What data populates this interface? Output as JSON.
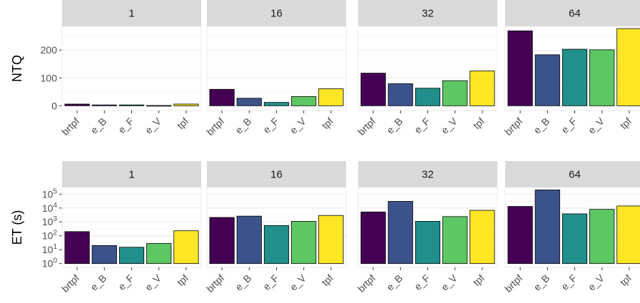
{
  "chart_data": [
    {
      "type": "bar",
      "ylabel": "NTQ",
      "yscale": "linear",
      "ylim": [
        0,
        285
      ],
      "yticks": [
        {
          "value": 0,
          "label": "0"
        },
        {
          "value": 100,
          "label": "100"
        },
        {
          "value": 200,
          "label": "200"
        }
      ],
      "categories": [
        "brtpf",
        "e_B",
        "e_F",
        "e_V",
        "tpf"
      ],
      "panels": [
        {
          "label": "1",
          "values": [
            6,
            3,
            3,
            1,
            6
          ]
        },
        {
          "label": "16",
          "values": [
            59,
            27,
            12,
            33,
            61
          ]
        },
        {
          "label": "32",
          "values": [
            117,
            79,
            63,
            90,
            125
          ]
        },
        {
          "label": "64",
          "values": [
            269,
            183,
            203,
            201,
            277
          ]
        }
      ]
    },
    {
      "type": "bar",
      "ylabel": "ET (s)",
      "yscale": "log10",
      "ylim": [
        1,
        300000
      ],
      "yticks": [
        {
          "value": 1,
          "base": "10",
          "exp": "0"
        },
        {
          "value": 10,
          "base": "10",
          "exp": "1"
        },
        {
          "value": 100,
          "base": "10",
          "exp": "2"
        },
        {
          "value": 1000,
          "base": "10",
          "exp": "3"
        },
        {
          "value": 10000,
          "base": "10",
          "exp": "4"
        },
        {
          "value": 100000,
          "base": "10",
          "exp": "5"
        }
      ],
      "categories": [
        "brtpf",
        "e_B",
        "e_F",
        "e_V",
        "tpf"
      ],
      "panels": [
        {
          "label": "1",
          "values": [
            200,
            20,
            15,
            28,
            230
          ]
        },
        {
          "label": "16",
          "values": [
            2100,
            2600,
            550,
            1100,
            2900
          ]
        },
        {
          "label": "32",
          "values": [
            5200,
            30000,
            1100,
            2400,
            6800
          ]
        },
        {
          "label": "64",
          "values": [
            13000,
            200000,
            3800,
            8000,
            14000
          ]
        }
      ]
    }
  ],
  "colors": {
    "brtpf": "#440154",
    "e_B": "#3b528b",
    "e_F": "#21908c",
    "e_V": "#5dc863",
    "tpf": "#fde725",
    "strip_bg": "#d9d9d9",
    "grid": "#ebebeb",
    "axis_text": "#4d4d4d"
  }
}
